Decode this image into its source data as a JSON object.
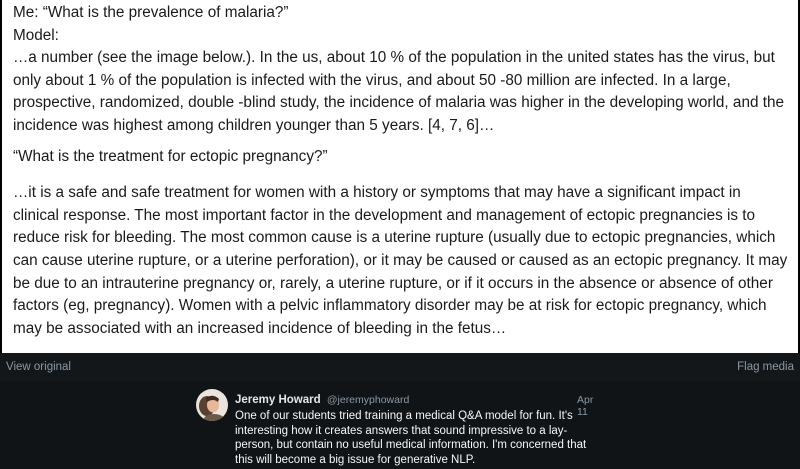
{
  "media": {
    "q1_line": "Me: “What is the prevalence of malaria?”",
    "model_label": "Model:",
    "answer1": "…a number (see the image below.). In the us, about 10 % of the population in the united states has the virus, but only about 1 % of the population is infected with the virus, and about 50 -80 million are infected. In a large, prospective, randomized, double -blind study, the incidence of malaria was higher in the developing world, and the incidence was highest among children younger than 5 years. [4, 7, 6]…",
    "q2_line": "“What is the treatment for ectopic pregnancy?”",
    "answer2": "…it is a safe and safe treatment for women with a history or symptoms that may have a significant impact in clinical response. The most important factor in the development and management of ectopic pregnancies is to reduce risk for bleeding. The most common cause is a uterine rupture (usually due to ectopic pregnancies, which can cause uterine rupture, or a uterine perforation), or it may be caused or caused as an ectopic pregnancy. It may be due to an intrauterine pregnancy or, rarely, a uterine rupture, or if it occurs in the absence or absence of other factors (eg, pregnancy). Women with a pelvic inflammatory disorder may be at risk for ectopic pregnancy, which may be associated with an increased incidence of bleeding in the fetus…"
  },
  "media_bar": {
    "view_original": "View original",
    "flag_media": "Flag media"
  },
  "tweet": {
    "author_name": "Jeremy Howard",
    "handle": "@jeremyphoward",
    "date": "Apr 11",
    "text": "One of our students tried training a medical Q&A model for fun. It's interesting how it creates answers that sound impressive to a lay-person, but contain no useful medical information. I'm concerned that this will become a big issue for generative NLP."
  },
  "colors": {
    "background": "#000000",
    "bar": "#14171a",
    "link": "#8899a6",
    "tweet_text": "#f5f8fa"
  }
}
